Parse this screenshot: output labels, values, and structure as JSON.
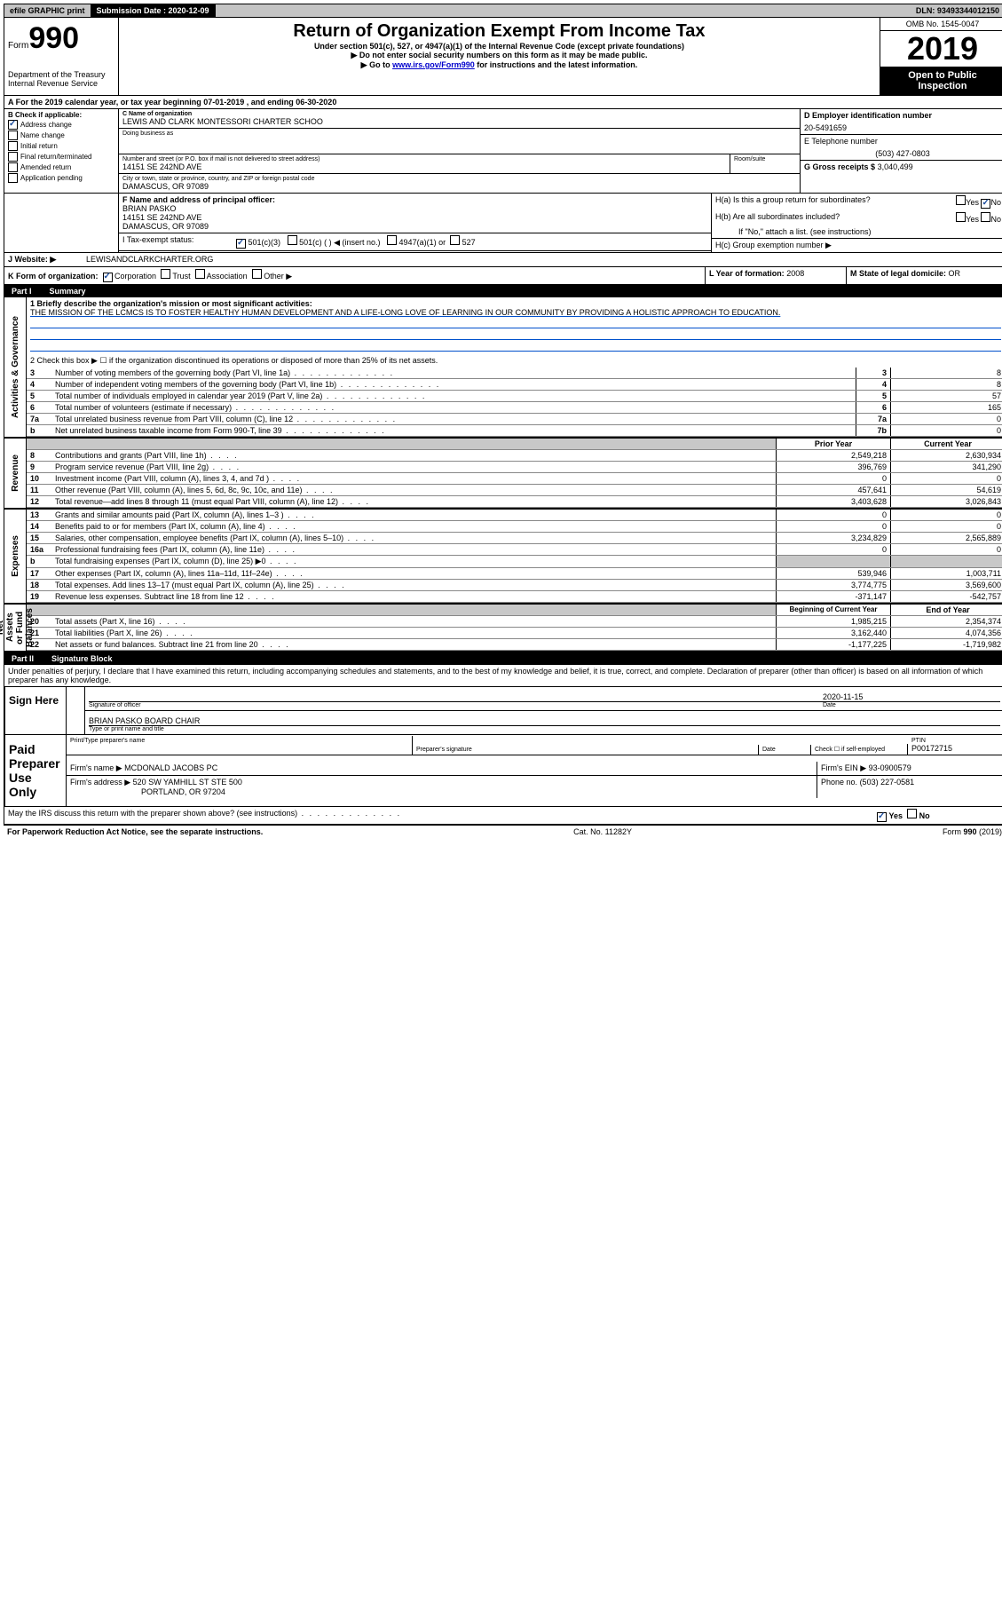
{
  "topbar": {
    "efile": "efile GRAPHIC print",
    "submission_label": "Submission Date : 2020-12-09",
    "dln": "DLN: 93493344012150"
  },
  "header": {
    "form_label": "Form",
    "form_number": "990",
    "dept": "Department of the Treasury",
    "irs": "Internal Revenue Service",
    "title": "Return of Organization Exempt From Income Tax",
    "sub1": "Under section 501(c), 527, or 4947(a)(1) of the Internal Revenue Code (except private foundations)",
    "sub2": "▶ Do not enter social security numbers on this form as it may be made public.",
    "sub3_pre": "▶ Go to ",
    "sub3_link": "www.irs.gov/Form990",
    "sub3_post": " for instructions and the latest information.",
    "omb": "OMB No. 1545-0047",
    "year": "2019",
    "open": "Open to Public Inspection"
  },
  "section_a": "A For the 2019 calendar year, or tax year beginning 07-01-2019    , and ending 06-30-2020",
  "box_b": {
    "label": "B Check if applicable:",
    "items": [
      "Address change",
      "Name change",
      "Initial return",
      "Final return/terminated",
      "Amended return",
      "Application pending"
    ]
  },
  "box_c": {
    "label": "C Name of organization",
    "name": "LEWIS AND CLARK MONTESSORI CHARTER SCHOO",
    "dba_label": "Doing business as",
    "addr_label": "Number and street (or P.O. box if mail is not delivered to street address)",
    "room_label": "Room/suite",
    "addr": "14151 SE 242ND AVE",
    "city_label": "City or town, state or province, country, and ZIP or foreign postal code",
    "city": "DAMASCUS, OR  97089"
  },
  "box_d": {
    "label": "D Employer identification number",
    "ein": "20-5491659"
  },
  "box_e": {
    "label": "E Telephone number",
    "phone": "(503) 427-0803"
  },
  "box_g": {
    "label": "G Gross receipts $",
    "amount": "3,040,499"
  },
  "box_f": {
    "label": "F Name and address of principal officer:",
    "name": "BRIAN PASKO",
    "addr1": "14151 SE 242ND AVE",
    "addr2": "DAMASCUS, OR  97089"
  },
  "box_h": {
    "ha": "H(a)  Is this a group return for subordinates?",
    "hb": "H(b)  Are all subordinates included?",
    "hb_note": "If \"No,\" attach a list. (see instructions)",
    "hc": "H(c)  Group exemption number ▶",
    "yes": "Yes",
    "no": "No"
  },
  "box_i": {
    "label": "I   Tax-exempt status:",
    "opts": [
      "501(c)(3)",
      "501(c) (  ) ◀ (insert no.)",
      "4947(a)(1) or",
      "527"
    ]
  },
  "box_j": {
    "label": "J   Website: ▶",
    "site": "LEWISANDCLARKCHARTER.ORG"
  },
  "box_k": {
    "label": "K Form of organization:",
    "opts": [
      "Corporation",
      "Trust",
      "Association",
      "Other ▶"
    ]
  },
  "box_l": {
    "label": "L Year of formation:",
    "year": "2008"
  },
  "box_m": {
    "label": "M State of legal domicile:",
    "state": "OR"
  },
  "part1": {
    "title": "Part I",
    "name": "Summary",
    "line1_label": "1  Briefly describe the organization's mission or most significant activities:",
    "mission": "THE MISSION OF THE LCMCS IS TO FOSTER HEALTHY HUMAN DEVELOPMENT AND A LIFE-LONG LOVE OF LEARNING IN OUR COMMUNITY BY PROVIDING A HOLISTIC APPROACH TO EDUCATION.",
    "line2": "2   Check this box ▶ ☐  if the organization discontinued its operations or disposed of more than 25% of its net assets.",
    "side_activities": "Activities & Governance",
    "side_revenue": "Revenue",
    "side_expenses": "Expenses",
    "side_net": "Net Assets or Fund Balances",
    "rows_gov": [
      {
        "idx": "3",
        "label": "Number of voting members of the governing body (Part VI, line 1a)",
        "num": "3",
        "val": "8"
      },
      {
        "idx": "4",
        "label": "Number of independent voting members of the governing body (Part VI, line 1b)",
        "num": "4",
        "val": "8"
      },
      {
        "idx": "5",
        "label": "Total number of individuals employed in calendar year 2019 (Part V, line 2a)",
        "num": "5",
        "val": "57"
      },
      {
        "idx": "6",
        "label": "Total number of volunteers (estimate if necessary)",
        "num": "6",
        "val": "165"
      },
      {
        "idx": "7a",
        "label": "Total unrelated business revenue from Part VIII, column (C), line 12",
        "num": "7a",
        "val": "0"
      },
      {
        "idx": "b",
        "label": "Net unrelated business taxable income from Form 990-T, line 39",
        "num": "7b",
        "val": "0"
      }
    ],
    "col_prior": "Prior Year",
    "col_current": "Current Year",
    "rows_rev": [
      {
        "idx": "8",
        "label": "Contributions and grants (Part VIII, line 1h)",
        "prior": "2,549,218",
        "curr": "2,630,934"
      },
      {
        "idx": "9",
        "label": "Program service revenue (Part VIII, line 2g)",
        "prior": "396,769",
        "curr": "341,290"
      },
      {
        "idx": "10",
        "label": "Investment income (Part VIII, column (A), lines 3, 4, and 7d )",
        "prior": "0",
        "curr": "0"
      },
      {
        "idx": "11",
        "label": "Other revenue (Part VIII, column (A), lines 5, 6d, 8c, 9c, 10c, and 11e)",
        "prior": "457,641",
        "curr": "54,619"
      },
      {
        "idx": "12",
        "label": "Total revenue—add lines 8 through 11 (must equal Part VIII, column (A), line 12)",
        "prior": "3,403,628",
        "curr": "3,026,843"
      }
    ],
    "rows_exp": [
      {
        "idx": "13",
        "label": "Grants and similar amounts paid (Part IX, column (A), lines 1–3 )",
        "prior": "0",
        "curr": "0"
      },
      {
        "idx": "14",
        "label": "Benefits paid to or for members (Part IX, column (A), line 4)",
        "prior": "0",
        "curr": "0"
      },
      {
        "idx": "15",
        "label": "Salaries, other compensation, employee benefits (Part IX, column (A), lines 5–10)",
        "prior": "3,234,829",
        "curr": "2,565,889"
      },
      {
        "idx": "16a",
        "label": "Professional fundraising fees (Part IX, column (A), line 11e)",
        "prior": "0",
        "curr": "0"
      },
      {
        "idx": "b",
        "label": "Total fundraising expenses (Part IX, column (D), line 25) ▶0",
        "prior": "",
        "curr": "",
        "shaded": true
      },
      {
        "idx": "17",
        "label": "Other expenses (Part IX, column (A), lines 11a–11d, 11f–24e)",
        "prior": "539,946",
        "curr": "1,003,711"
      },
      {
        "idx": "18",
        "label": "Total expenses. Add lines 13–17 (must equal Part IX, column (A), line 25)",
        "prior": "3,774,775",
        "curr": "3,569,600"
      },
      {
        "idx": "19",
        "label": "Revenue less expenses. Subtract line 18 from line 12",
        "prior": "-371,147",
        "curr": "-542,757"
      }
    ],
    "col_begin": "Beginning of Current Year",
    "col_end": "End of Year",
    "rows_net": [
      {
        "idx": "20",
        "label": "Total assets (Part X, line 16)",
        "prior": "1,985,215",
        "curr": "2,354,374"
      },
      {
        "idx": "21",
        "label": "Total liabilities (Part X, line 26)",
        "prior": "3,162,440",
        "curr": "4,074,356"
      },
      {
        "idx": "22",
        "label": "Net assets or fund balances. Subtract line 21 from line 20",
        "prior": "-1,177,225",
        "curr": "-1,719,982"
      }
    ]
  },
  "part2": {
    "title": "Part II",
    "name": "Signature Block",
    "penalty": "Under penalties of perjury, I declare that I have examined this return, including accompanying schedules and statements, and to the best of my knowledge and belief, it is true, correct, and complete. Declaration of preparer (other than officer) is based on all information of which preparer has any knowledge.",
    "sign_here": "Sign Here",
    "sig_officer": "Signature of officer",
    "sig_date_label": "Date",
    "sig_date": "2020-11-15",
    "sig_name": "BRIAN PASKO  BOARD CHAIR",
    "sig_type": "Type or print name and title",
    "paid": "Paid Preparer Use Only",
    "prep_name_label": "Print/Type preparer's name",
    "prep_sig_label": "Preparer's signature",
    "prep_date_label": "Date",
    "prep_check": "Check ☐ if self-employed",
    "ptin_label": "PTIN",
    "ptin": "P00172715",
    "firm_name_label": "Firm's name    ▶",
    "firm_name": "MCDONALD JACOBS PC",
    "firm_ein_label": "Firm's EIN ▶",
    "firm_ein": "93-0900579",
    "firm_addr_label": "Firm's address ▶",
    "firm_addr1": "520 SW YAMHILL ST STE 500",
    "firm_addr2": "PORTLAND, OR  97204",
    "firm_phone_label": "Phone no.",
    "firm_phone": "(503) 227-0581",
    "may_discuss": "May the IRS discuss this return with the preparer shown above? (see instructions)"
  },
  "footer": {
    "paperwork": "For Paperwork Reduction Act Notice, see the separate instructions.",
    "cat": "Cat. No. 11282Y",
    "form": "Form 990 (2019)"
  }
}
